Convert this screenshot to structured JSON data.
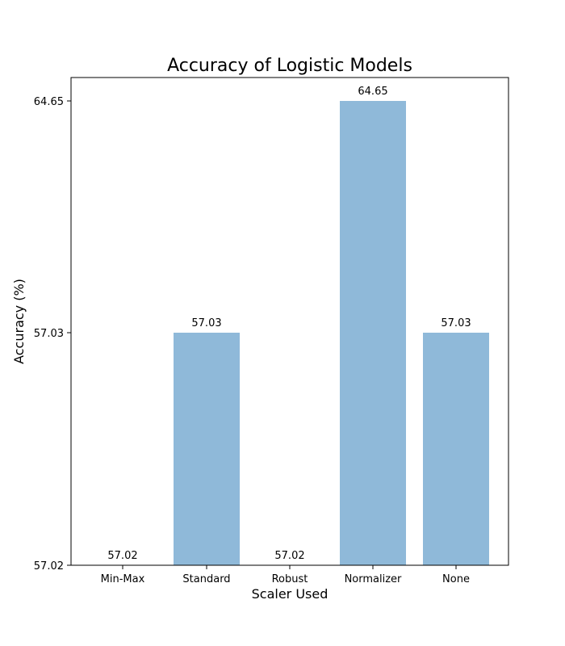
{
  "chart_data": {
    "type": "bar",
    "title": "Accuracy of Logistic Models",
    "xlabel": "Scaler Used",
    "ylabel": "Accuracy (%)",
    "categories": [
      "Min-Max",
      "Standard",
      "Robust",
      "Normalizer",
      "None"
    ],
    "values": [
      57.02,
      57.03,
      57.02,
      64.65,
      57.03
    ],
    "data_labels": [
      "57.02",
      "57.03",
      "57.02",
      "64.65",
      "57.03"
    ],
    "yticks": [
      57.02,
      57.03,
      64.65
    ],
    "ytick_labels": [
      "57.02",
      "57.03",
      "64.65"
    ],
    "y_scale": "nonlinear (ticks placed at 57.02, 57.03 and 64.65, evenly spaced)",
    "bar_color": "#8fb9d9",
    "grid": false,
    "legend": "none"
  }
}
